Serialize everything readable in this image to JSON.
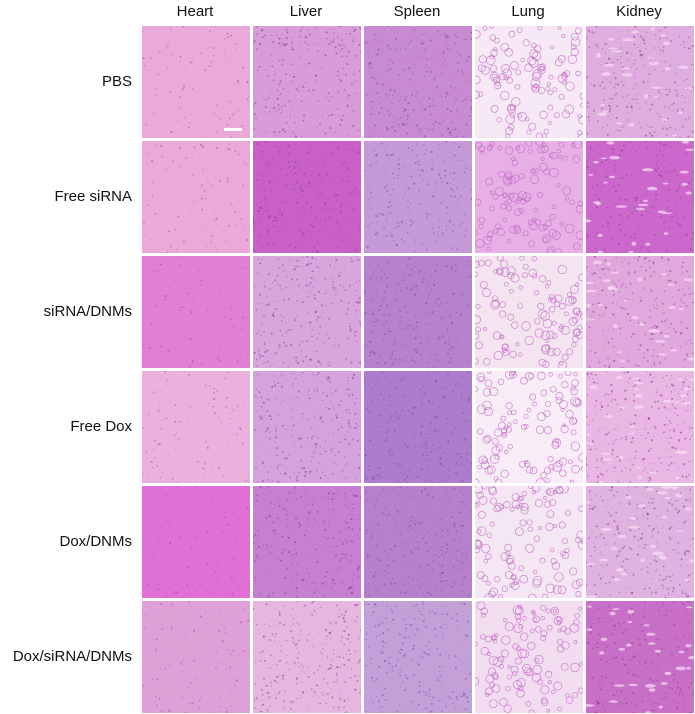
{
  "columns": [
    "Heart",
    "Liver",
    "Spleen",
    "Lung",
    "Kidney"
  ],
  "rows": [
    "PBS",
    "Free siRNA",
    "siRNA/DNMs",
    "Free Dox",
    "Dox/DNMs",
    "Dox/siRNA/DNMs"
  ],
  "stain_colors": {
    "Heart": [
      "#eaa9d8",
      "#eaa9d8",
      "#e27fd3",
      "#ecb0dc",
      "#e070d4",
      "#dfa0d8"
    ],
    "Liver": [
      "#d89cd8",
      "#c860c8",
      "#d6a6dc",
      "#d4a2dc",
      "#c680d2",
      "#e6b6e0"
    ],
    "Spleen": [
      "#c88ad0",
      "#c69ad6",
      "#b682cc",
      "#ae7ccc",
      "#b680cc",
      "#c4a0d8"
    ],
    "Lung": [
      "#f6e8f4",
      "#e6b0e6",
      "#f4e4f0",
      "#f8ecf6",
      "#f4e6f2",
      "#f2dcf0"
    ],
    "Kidney": [
      "#e0aede",
      "#cc68cc",
      "#e0a8dc",
      "#eab6e4",
      "#e0b2e0",
      "#c870c8"
    ]
  }
}
